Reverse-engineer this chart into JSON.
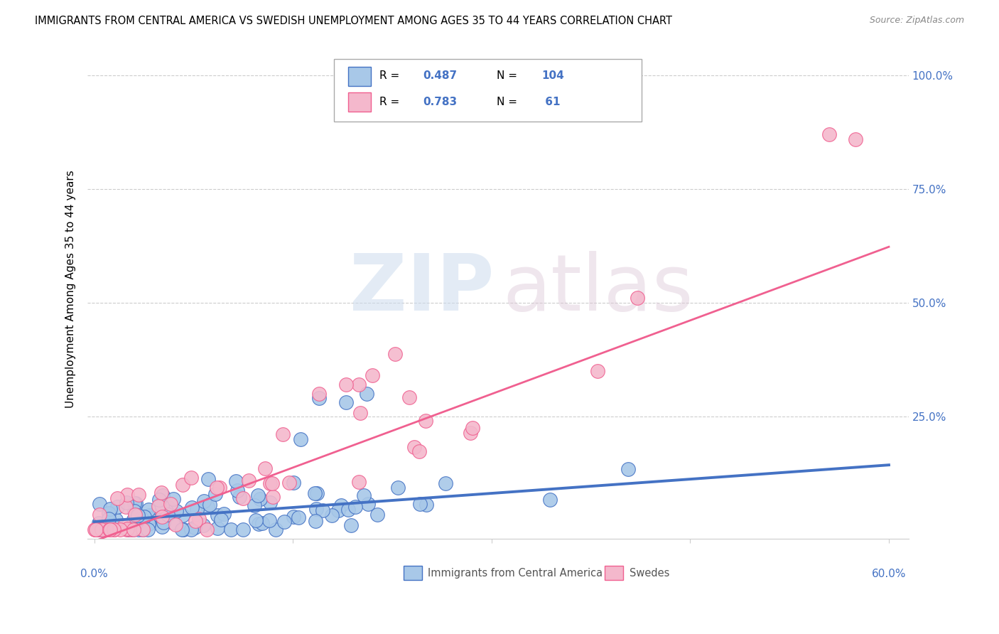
{
  "title": "IMMIGRANTS FROM CENTRAL AMERICA VS SWEDISH UNEMPLOYMENT AMONG AGES 35 TO 44 YEARS CORRELATION CHART",
  "source": "Source: ZipAtlas.com",
  "ylabel": "Unemployment Among Ages 35 to 44 years",
  "ytick_vals": [
    0,
    0.25,
    0.5,
    0.75,
    1.0
  ],
  "ytick_labels": [
    "",
    "25.0%",
    "50.0%",
    "75.0%",
    "100.0%"
  ],
  "xlim": [
    -0.005,
    0.615
  ],
  "ylim": [
    -0.02,
    1.08
  ],
  "color_blue": "#A8C8E8",
  "color_pink": "#F4B8CC",
  "line_blue": "#4472C4",
  "line_pink": "#F06090",
  "legend_r1": "0.487",
  "legend_n1": "104",
  "legend_r2": "0.783",
  "legend_n2": " 61",
  "blue_intercept": 0.018,
  "blue_slope": 0.208,
  "pink_intercept": -0.025,
  "pink_slope": 1.08,
  "title_fontsize": 10.5,
  "source_fontsize": 9,
  "label_fontsize": 11,
  "watermark_zip": "ZIP",
  "watermark_atlas": "atlas"
}
